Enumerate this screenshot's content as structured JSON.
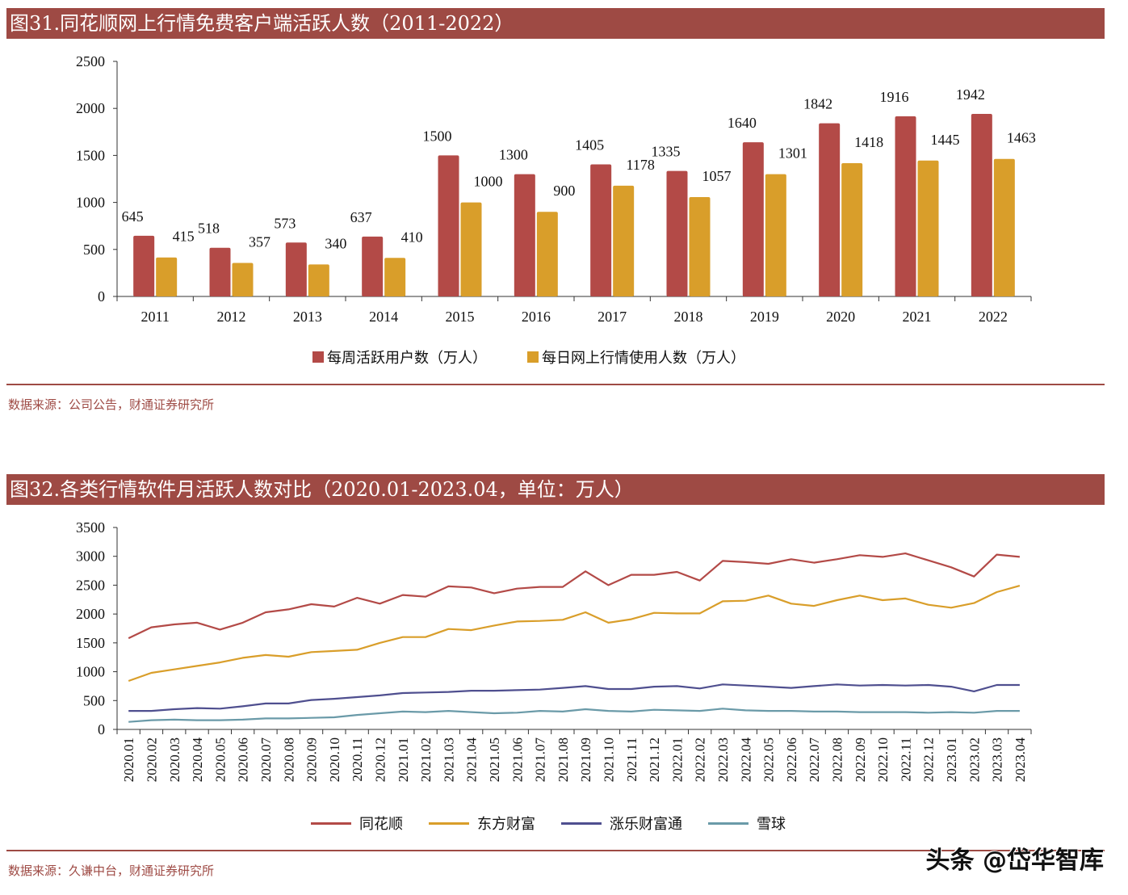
{
  "figure1": {
    "title": "图31.同花顺网上行情免费客户端活跃人数（2011-2022）",
    "source": "数据来源：公司公告，财通证券研究所"
  },
  "figure2": {
    "title": "图32.各类行情软件月活跃人数对比（2020.01-2023.04，单位：万人）",
    "source": "数据来源：久谦中台，财通证券研究所"
  },
  "watermark": "头条 @岱华智库",
  "chart_data": [
    {
      "type": "bar",
      "title": "图31.同花顺网上行情免费客户端活跃人数（2011-2022）",
      "categories": [
        "2011",
        "2012",
        "2013",
        "2014",
        "2015",
        "2016",
        "2017",
        "2018",
        "2019",
        "2020",
        "2021",
        "2022"
      ],
      "series": [
        {
          "name": "每周活跃用户数（万人）",
          "color": "#b34a47",
          "values": [
            645,
            518,
            573,
            637,
            1500,
            1300,
            1405,
            1335,
            1640,
            1842,
            1916,
            1942
          ]
        },
        {
          "name": "每日网上行情使用人数（万人）",
          "color": "#d99e2a",
          "values": [
            415,
            357,
            340,
            410,
            1000,
            900,
            1178,
            1057,
            1301,
            1418,
            1445,
            1463
          ]
        }
      ],
      "ylim": [
        0,
        2500
      ],
      "yticks": [
        0,
        500,
        1000,
        1500,
        2000,
        2500
      ],
      "xlabel": "",
      "ylabel": "",
      "grid": false,
      "legend": "bottom",
      "data_labels": true
    },
    {
      "type": "line",
      "title": "图32.各类行情软件月活跃人数对比（2020.01-2023.04，单位：万人）",
      "categories": [
        "2020.01",
        "2020.02",
        "2020.03",
        "2020.04",
        "2020.05",
        "2020.06",
        "2020.07",
        "2020.08",
        "2020.09",
        "2020.10",
        "2020.11",
        "2020.12",
        "2021.01",
        "2021.02",
        "2021.03",
        "2021.04",
        "2021.05",
        "2021.06",
        "2021.07",
        "2021.08",
        "2021.09",
        "2021.10",
        "2021.11",
        "2021.12",
        "2022.01",
        "2022.02",
        "2022.03",
        "2022.04",
        "2022.05",
        "2022.06",
        "2022.07",
        "2022.08",
        "2022.09",
        "2022.10",
        "2022.11",
        "2022.12",
        "2023.01",
        "2023.02",
        "2023.03",
        "2023.04"
      ],
      "series": [
        {
          "name": "同花顺",
          "color": "#b34a47",
          "values": [
            1580,
            1770,
            1820,
            1850,
            1730,
            1850,
            2030,
            2080,
            2170,
            2130,
            2280,
            2180,
            2330,
            2300,
            2480,
            2460,
            2360,
            2440,
            2470,
            2470,
            2740,
            2500,
            2680,
            2680,
            2730,
            2580,
            2920,
            2900,
            2870,
            2950,
            2890,
            2950,
            3020,
            2990,
            3050,
            2930,
            2810,
            2650,
            3030,
            2990
          ]
        },
        {
          "name": "东方财富",
          "color": "#d99e2a",
          "values": [
            840,
            980,
            1040,
            1100,
            1160,
            1240,
            1290,
            1260,
            1340,
            1360,
            1380,
            1500,
            1600,
            1600,
            1740,
            1720,
            1800,
            1870,
            1880,
            1900,
            2030,
            1850,
            1910,
            2020,
            2010,
            2010,
            2220,
            2230,
            2320,
            2180,
            2140,
            2240,
            2320,
            2240,
            2270,
            2160,
            2110,
            2190,
            2380,
            2490
          ]
        },
        {
          "name": "涨乐财富通",
          "color": "#4f4f8f",
          "values": [
            320,
            320,
            350,
            370,
            360,
            400,
            450,
            450,
            510,
            530,
            560,
            590,
            630,
            640,
            650,
            670,
            670,
            680,
            690,
            720,
            750,
            700,
            700,
            740,
            750,
            710,
            780,
            760,
            740,
            720,
            750,
            780,
            760,
            770,
            760,
            770,
            740,
            660,
            770,
            770
          ]
        },
        {
          "name": "雪球",
          "color": "#6a9aa8",
          "values": [
            130,
            160,
            170,
            160,
            160,
            170,
            190,
            190,
            200,
            210,
            250,
            280,
            310,
            300,
            320,
            300,
            280,
            290,
            320,
            310,
            350,
            320,
            310,
            340,
            330,
            320,
            360,
            330,
            320,
            320,
            310,
            310,
            300,
            300,
            300,
            290,
            300,
            290,
            320,
            320
          ]
        }
      ],
      "ylim": [
        0,
        3500
      ],
      "yticks": [
        0,
        500,
        1000,
        1500,
        2000,
        2500,
        3000,
        3500
      ],
      "xlabel": "",
      "ylabel": "",
      "grid": false,
      "legend": "bottom"
    }
  ]
}
